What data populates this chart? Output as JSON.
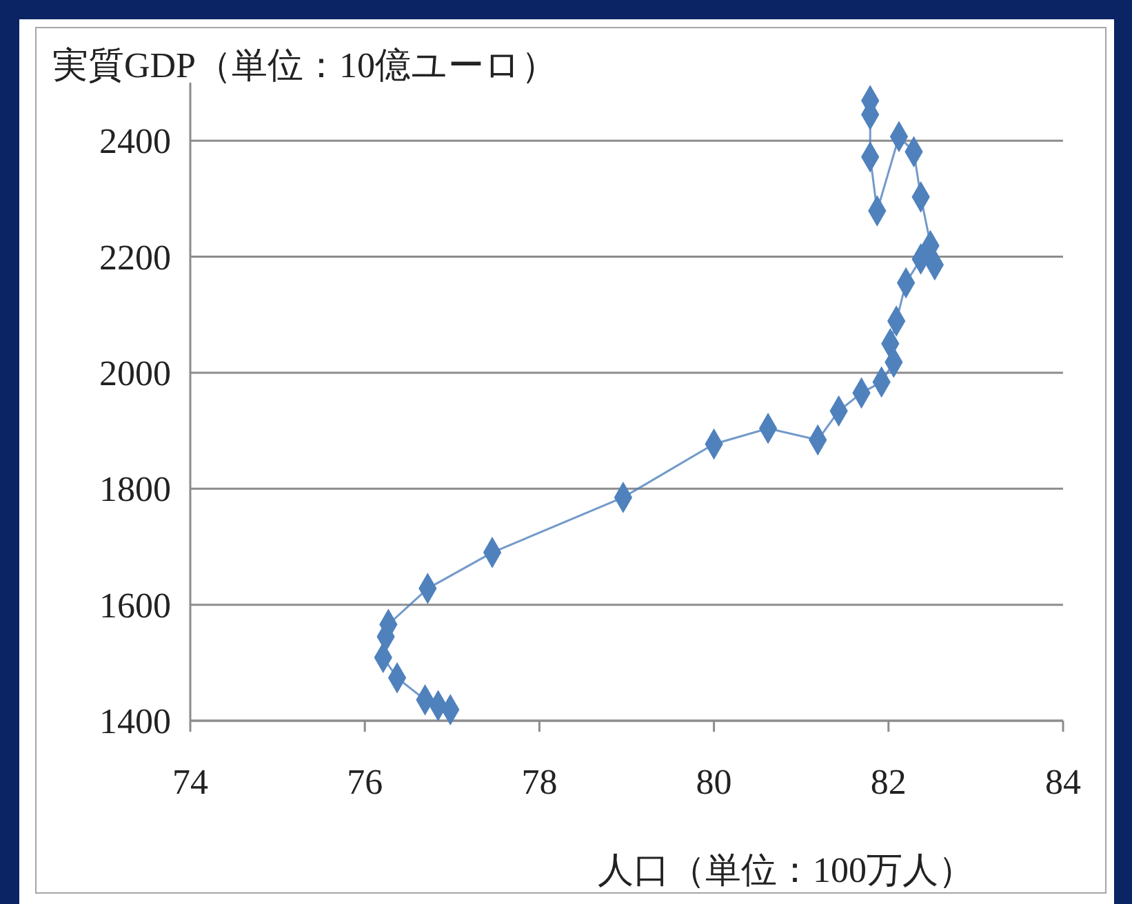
{
  "chart_data": {
    "type": "line",
    "title": "実質GDP（単位：10億ユーロ）",
    "xlabel": "人口（単位：100万人）",
    "xlim": [
      74,
      84
    ],
    "xticks": [
      74,
      76,
      78,
      80,
      82,
      84
    ],
    "ylim": [
      1400,
      2500
    ],
    "yticks": [
      1400,
      1600,
      1800,
      2000,
      2200,
      2400
    ],
    "grid": "y",
    "marker": "diamond",
    "line_style": "solid",
    "series": [
      {
        "color": "#4f81bd",
        "x": [
          76.98,
          76.84,
          76.69,
          76.37,
          76.21,
          76.24,
          76.27,
          76.72,
          77.46,
          78.96,
          80.0,
          80.62,
          81.19,
          81.43,
          81.69,
          81.92,
          82.06,
          82.02,
          82.09,
          82.2,
          82.37,
          82.48,
          82.53,
          82.37,
          82.29,
          82.12,
          81.87,
          81.79,
          81.79,
          81.79
        ],
        "values": [
          1419,
          1426,
          1436,
          1474,
          1509,
          1545,
          1566,
          1628,
          1690,
          1785,
          1877,
          1904,
          1884,
          1934,
          1965,
          1984,
          2018,
          2050,
          2089,
          2155,
          2196,
          2219,
          2186,
          2303,
          2381,
          2407,
          2279,
          2372,
          2445,
          2469
        ]
      }
    ]
  }
}
